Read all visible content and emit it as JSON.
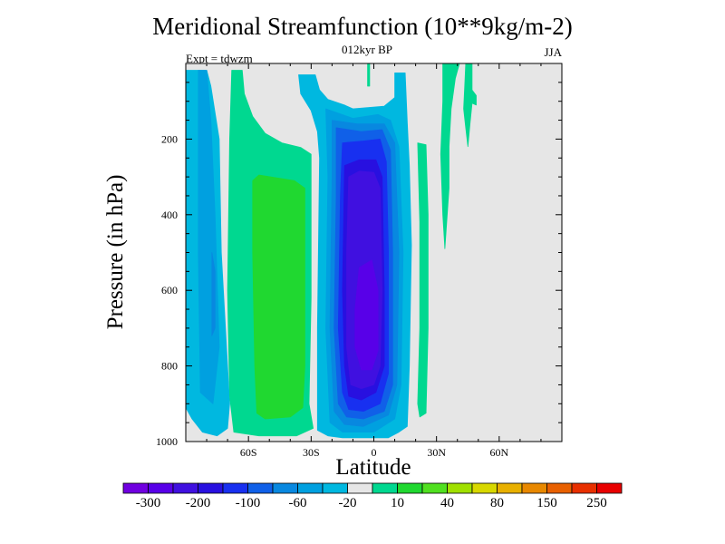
{
  "header": {
    "title": "Meridional Streamfunction (10**9kg/m-2)",
    "subtitle": "012kyr BP",
    "left_note": "Expt = tdwzm",
    "right_note": "JJA"
  },
  "chart_data": {
    "type": "heatmap",
    "title": "Meridional Streamfunction (10**9kg/m-2)",
    "xlabel": "Latitude",
    "ylabel": "Pressure (in hPa)",
    "xlim": [
      -90,
      90
    ],
    "ylim": [
      0,
      1000
    ],
    "y_reversed": true,
    "x_ticks": [
      {
        "value": -60,
        "label": "60S"
      },
      {
        "value": -30,
        "label": "30S"
      },
      {
        "value": 0,
        "label": "0"
      },
      {
        "value": 30,
        "label": "30N"
      },
      {
        "value": 60,
        "label": "60N"
      }
    ],
    "y_ticks": [
      {
        "value": 200,
        "label": "200"
      },
      {
        "value": 400,
        "label": "400"
      },
      {
        "value": 600,
        "label": "600"
      },
      {
        "value": 800,
        "label": "800"
      },
      {
        "value": 1000,
        "label": "1000"
      }
    ],
    "grid": false,
    "background_color": "#e6e6e6",
    "colorbar": {
      "colors": [
        "#7000e0",
        "#5800e8",
        "#4010e0",
        "#2810e0",
        "#1830f0",
        "#1060e8",
        "#0888e0",
        "#00a0e0",
        "#00b8e0",
        "#e6e6e6",
        "#00d890",
        "#20d830",
        "#50e020",
        "#a0e000",
        "#d8d800",
        "#e8b000",
        "#e88800",
        "#e86000",
        "#e83000",
        "#e80000"
      ],
      "labels": [
        {
          "text": "-300",
          "boundary": 1
        },
        {
          "text": "-200",
          "boundary": 3
        },
        {
          "text": "-100",
          "boundary": 5
        },
        {
          "text": "-60",
          "boundary": 7
        },
        {
          "text": "-20",
          "boundary": 9
        },
        {
          "text": "10",
          "boundary": 11
        },
        {
          "text": "40",
          "boundary": 13
        },
        {
          "text": "80",
          "boundary": 15
        },
        {
          "text": "150",
          "boundary": 17
        },
        {
          "text": "250",
          "boundary": 19
        }
      ]
    },
    "regions": [
      {
        "name": "sh-polar-cell",
        "color": "#00b8e0",
        "polygon": [
          [
            -90,
            18
          ],
          [
            -80,
            18
          ],
          [
            -78,
            60
          ],
          [
            -74,
            200
          ],
          [
            -73,
            500
          ],
          [
            -69,
            900
          ],
          [
            -70,
            965
          ],
          [
            -75,
            985
          ],
          [
            -82,
            975
          ],
          [
            -87,
            940
          ],
          [
            -90,
            910
          ]
        ]
      },
      {
        "name": "sh-polar-cell-core",
        "color": "#00a0e0",
        "polygon": [
          [
            -84,
            18
          ],
          [
            -80,
            18
          ],
          [
            -78,
            150
          ],
          [
            -76,
            400
          ],
          [
            -74,
            750
          ],
          [
            -77,
            900
          ],
          [
            -83,
            870
          ],
          [
            -84,
            500
          ]
        ]
      },
      {
        "name": "sh-polar-cell-max",
        "color": "#0888e0",
        "polygon": [
          [
            -77.5,
            500
          ],
          [
            -76,
            550
          ],
          [
            -76,
            700
          ],
          [
            -77.5,
            720
          ]
        ]
      },
      {
        "name": "sh-ferrel-cell-outer",
        "color": "#00d890",
        "polygon": [
          [
            -68,
            18
          ],
          [
            -63,
            18
          ],
          [
            -62,
            80
          ],
          [
            -58,
            140
          ],
          [
            -52,
            185
          ],
          [
            -44,
            210
          ],
          [
            -35,
            222
          ],
          [
            -30,
            240
          ],
          [
            -30,
            620
          ],
          [
            -31,
            900
          ],
          [
            -29,
            965
          ],
          [
            -37,
            985
          ],
          [
            -55,
            985
          ],
          [
            -67,
            975
          ],
          [
            -69,
            880
          ],
          [
            -70,
            600
          ],
          [
            -69,
            200
          ]
        ]
      },
      {
        "name": "sh-ferrel-cell-inner",
        "color": "#20d830",
        "polygon": [
          [
            -58,
            310
          ],
          [
            -55,
            295
          ],
          [
            -38,
            310
          ],
          [
            -33,
            330
          ],
          [
            -33,
            800
          ],
          [
            -34,
            910
          ],
          [
            -40,
            935
          ],
          [
            -52,
            940
          ],
          [
            -56,
            925
          ],
          [
            -57,
            800
          ],
          [
            -58,
            500
          ]
        ]
      },
      {
        "name": "hadley-cell",
        "color": "#00b8e0",
        "polygon": [
          [
            -28,
            30
          ],
          [
            -26,
            70
          ],
          [
            -22,
            95
          ],
          [
            -14,
            110
          ],
          [
            -10,
            120
          ],
          [
            5,
            113
          ],
          [
            10,
            90
          ],
          [
            10,
            25
          ],
          [
            15,
            25
          ],
          [
            16,
            155
          ],
          [
            17,
            270
          ],
          [
            18,
            480
          ],
          [
            17,
            800
          ],
          [
            16,
            960
          ],
          [
            12,
            975
          ],
          [
            7,
            990
          ],
          [
            -15,
            990
          ],
          [
            -22,
            985
          ],
          [
            -27,
            970
          ],
          [
            -27,
            700
          ],
          [
            -26,
            250
          ],
          [
            -27,
            180
          ],
          [
            -30,
            125
          ],
          [
            -35,
            80
          ],
          [
            -36,
            30
          ]
        ]
      },
      {
        "name": "hadley-cell-2",
        "color": "#00a0e0",
        "polygon": [
          [
            -23,
            120
          ],
          [
            -10,
            145
          ],
          [
            2,
            135
          ],
          [
            8,
            150
          ],
          [
            12,
            220
          ],
          [
            14,
            500
          ],
          [
            13,
            850
          ],
          [
            10,
            940
          ],
          [
            0,
            975
          ],
          [
            -15,
            975
          ],
          [
            -21,
            950
          ],
          [
            -23,
            700
          ],
          [
            -22,
            300
          ]
        ]
      },
      {
        "name": "hadley-cell-3",
        "color": "#0888e0",
        "polygon": [
          [
            -20,
            150
          ],
          [
            -8,
            160
          ],
          [
            5,
            160
          ],
          [
            10,
            210
          ],
          [
            12,
            500
          ],
          [
            11,
            850
          ],
          [
            7,
            930
          ],
          [
            -5,
            960
          ],
          [
            -14,
            955
          ],
          [
            -19,
            920
          ],
          [
            -21,
            700
          ],
          [
            -20,
            300
          ]
        ]
      },
      {
        "name": "hadley-cell-4",
        "color": "#1060e8",
        "polygon": [
          [
            -18,
            170
          ],
          [
            -6,
            180
          ],
          [
            4,
            175
          ],
          [
            8,
            230
          ],
          [
            9,
            500
          ],
          [
            9,
            850
          ],
          [
            5,
            920
          ],
          [
            -5,
            940
          ],
          [
            -13,
            935
          ],
          [
            -17,
            900
          ],
          [
            -19,
            700
          ],
          [
            -18,
            350
          ]
        ]
      },
      {
        "name": "hadley-cell-5",
        "color": "#1830f0",
        "polygon": [
          [
            -15,
            210
          ],
          [
            -5,
            205
          ],
          [
            3,
            200
          ],
          [
            6,
            260
          ],
          [
            7,
            500
          ],
          [
            7,
            820
          ],
          [
            3,
            900
          ],
          [
            -5,
            920
          ],
          [
            -12,
            915
          ],
          [
            -15,
            870
          ],
          [
            -17,
            700
          ],
          [
            -16,
            350
          ]
        ]
      },
      {
        "name": "hadley-cell-6",
        "color": "#2810e0",
        "polygon": [
          [
            -14,
            270
          ],
          [
            -7,
            255
          ],
          [
            1,
            255
          ],
          [
            4,
            300
          ],
          [
            5,
            600
          ],
          [
            5,
            800
          ],
          [
            1,
            870
          ],
          [
            -6,
            890
          ],
          [
            -12,
            880
          ],
          [
            -14,
            800
          ],
          [
            -15,
            600
          ]
        ]
      },
      {
        "name": "hadley-cell-7",
        "color": "#4010e0",
        "polygon": [
          [
            -12,
            300
          ],
          [
            -7,
            285
          ],
          [
            0,
            288
          ],
          [
            3,
            330
          ],
          [
            4,
            600
          ],
          [
            3,
            800
          ],
          [
            0,
            850
          ],
          [
            -6,
            860
          ],
          [
            -11,
            850
          ],
          [
            -13,
            750
          ],
          [
            -13,
            500
          ]
        ]
      },
      {
        "name": "hadley-cell-core",
        "color": "#5800e8",
        "polygon": [
          [
            -7,
            540
          ],
          [
            -1,
            520
          ],
          [
            2,
            600
          ],
          [
            2,
            760
          ],
          [
            -1,
            810
          ],
          [
            -6,
            810
          ],
          [
            -9,
            750
          ],
          [
            -9,
            650
          ]
        ]
      },
      {
        "name": "nh-ferrel-cell",
        "color": "#00d890",
        "polygon": [
          [
            21,
            210
          ],
          [
            22,
            420
          ],
          [
            22,
            700
          ],
          [
            21,
            900
          ],
          [
            22,
            935
          ],
          [
            25,
            925
          ],
          [
            26,
            700
          ],
          [
            26,
            400
          ],
          [
            25,
            215
          ]
        ]
      },
      {
        "name": "nh-midlat-cell-1",
        "color": "#00d890",
        "polygon": [
          [
            33,
            0
          ],
          [
            41,
            0
          ],
          [
            39,
            40
          ],
          [
            37,
            120
          ],
          [
            36,
            220
          ],
          [
            36,
            330
          ],
          [
            34,
            490
          ],
          [
            33,
            400
          ],
          [
            32,
            240
          ],
          [
            33,
            100
          ]
        ]
      },
      {
        "name": "nh-midlat-cell-2",
        "color": "#00d890",
        "polygon": [
          [
            44,
            0
          ],
          [
            47,
            0
          ],
          [
            47,
            70
          ],
          [
            49,
            85
          ],
          [
            49,
            110
          ],
          [
            47,
            105
          ],
          [
            46,
            160
          ],
          [
            45,
            220
          ],
          [
            44,
            170
          ],
          [
            43,
            120
          ],
          [
            43.5,
            60
          ]
        ]
      },
      {
        "name": "upper-level-cell",
        "color": "#00d890",
        "polygon": [
          [
            -3,
            0
          ],
          [
            -2,
            0
          ],
          [
            -2,
            60
          ],
          [
            -3,
            60
          ]
        ]
      }
    ]
  }
}
